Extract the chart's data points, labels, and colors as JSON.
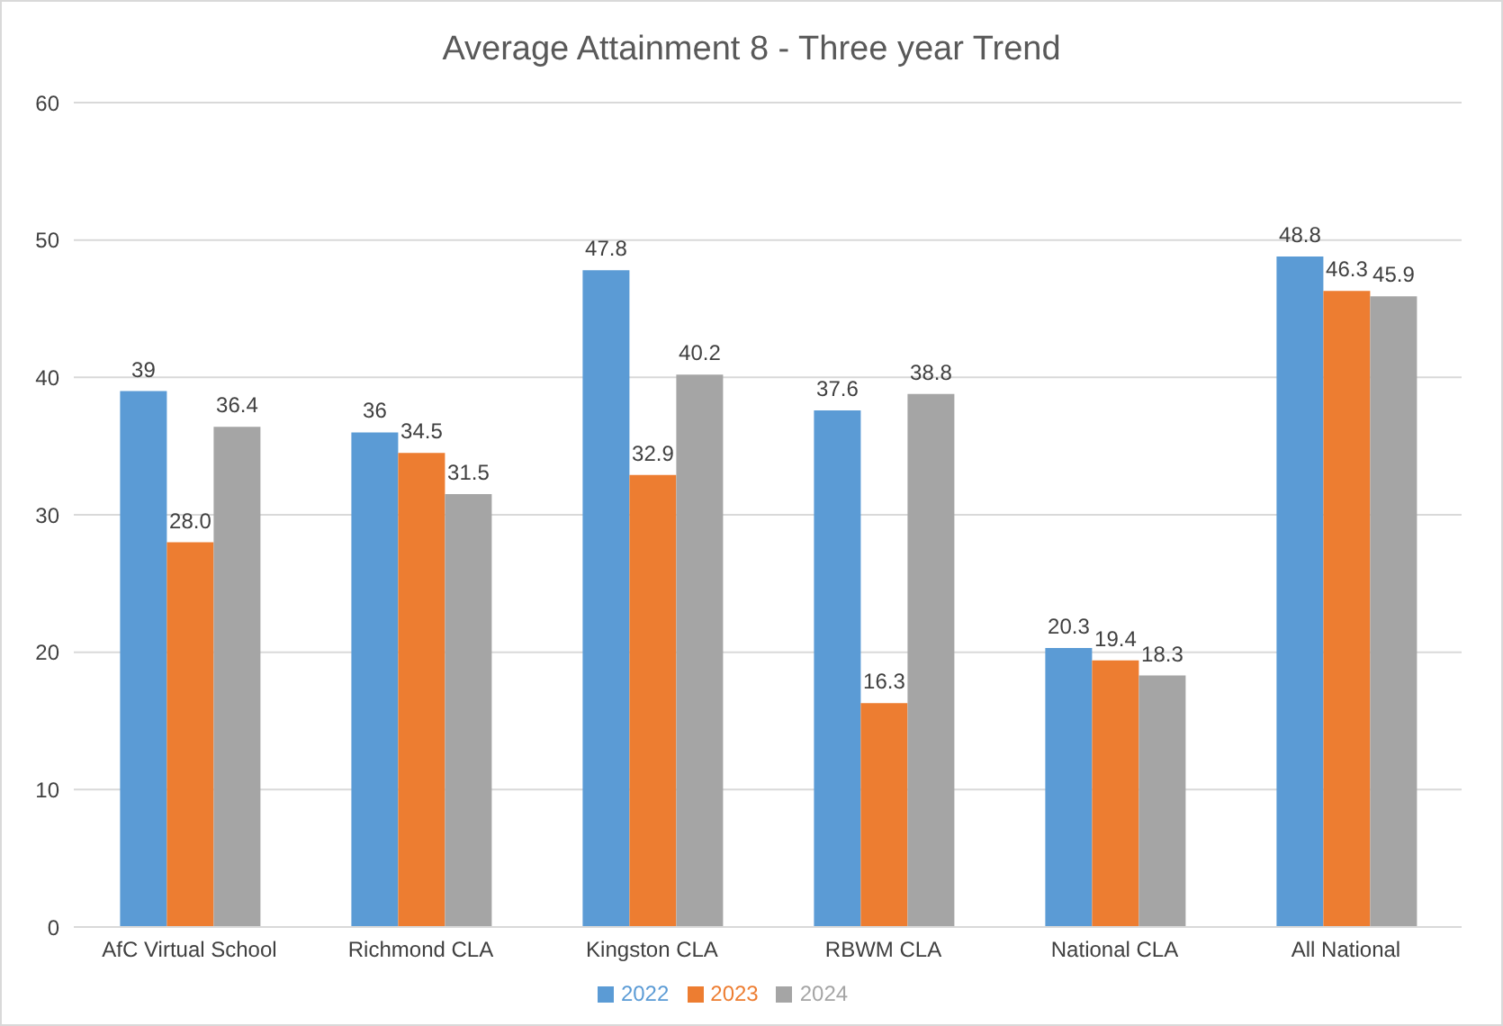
{
  "chart_data": {
    "type": "bar",
    "title": "Average Attainment 8 - Three year Trend",
    "categories": [
      "AfC Virtual School",
      "Richmond CLA",
      "Kingston CLA",
      "RBWM CLA",
      "National CLA",
      "All National"
    ],
    "series": [
      {
        "name": "2022",
        "color": "#5b9bd5",
        "values": [
          39,
          36,
          47.8,
          37.6,
          20.3,
          48.8
        ],
        "value_labels": [
          "39",
          "36",
          "47.8",
          "37.6",
          "20.3",
          "48.8"
        ]
      },
      {
        "name": "2023",
        "color": "#ed7d31",
        "values": [
          28.0,
          34.5,
          32.9,
          16.3,
          19.4,
          46.3
        ],
        "value_labels": [
          "28.0",
          "34.5",
          "32.9",
          "16.3",
          "19.4",
          "46.3"
        ]
      },
      {
        "name": "2024",
        "color": "#a5a5a5",
        "values": [
          36.4,
          31.5,
          40.2,
          38.8,
          18.3,
          45.9
        ],
        "value_labels": [
          "36.4",
          "31.5",
          "40.2",
          "38.8",
          "18.3",
          "45.9"
        ]
      }
    ],
    "ylim": [
      0,
      60
    ],
    "yticks": [
      0,
      10,
      20,
      30,
      40,
      50,
      60
    ],
    "grid": "y",
    "legend": "bottom"
  }
}
